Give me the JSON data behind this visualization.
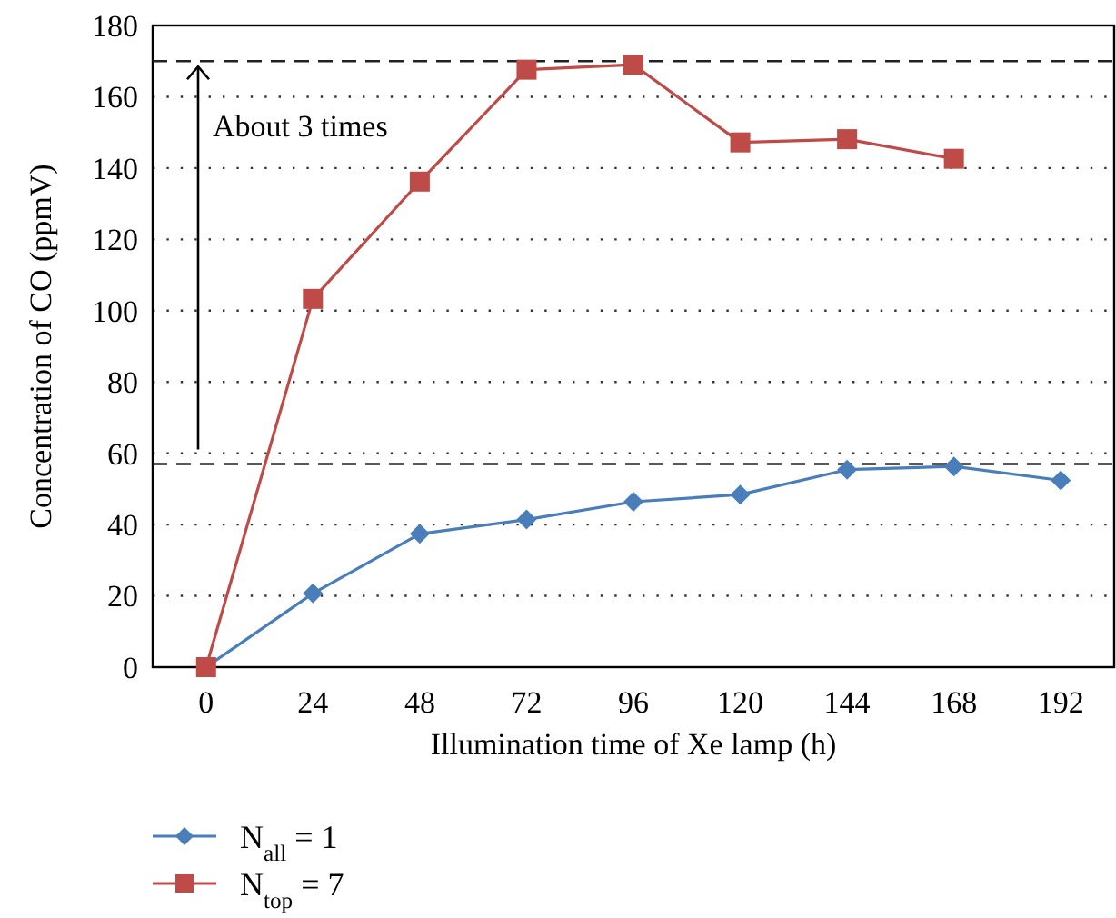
{
  "chart_data": {
    "type": "line",
    "xlabel": "Illumination time of Xe lamp (h)",
    "ylabel": "Concentration of CO (ppmV)",
    "x": [
      0,
      24,
      48,
      72,
      96,
      120,
      144,
      168,
      192
    ],
    "xlim": [
      -12,
      204
    ],
    "xticks": [
      0,
      24,
      48,
      72,
      96,
      120,
      144,
      168,
      192
    ],
    "ylim": [
      0,
      180
    ],
    "yticks": [
      0,
      20,
      40,
      60,
      80,
      100,
      120,
      140,
      160,
      180
    ],
    "grid": "y",
    "legend": "bottom left",
    "series": [
      {
        "name": "N$_{all}$ = 1",
        "color": "#4a7ebb",
        "marker": "diamond",
        "values": [
          0,
          20.7,
          37.4,
          41.4,
          46.4,
          48.4,
          55.4,
          56.3,
          52.4
        ]
      },
      {
        "name": "N$_{top}$ = 7",
        "color": "#be4b48",
        "marker": "square",
        "values": [
          0,
          103.3,
          136.2,
          167.6,
          169,
          147.2,
          148.1,
          142.6,
          null
        ]
      }
    ],
    "ref_lines": [
      {
        "axis": "y",
        "value": 170,
        "color": "#222222",
        "line_style": "dashed"
      },
      {
        "axis": "y",
        "value": 57,
        "color": "#222222",
        "line_style": "dashed"
      }
    ],
    "annotations": [
      "About 3 times"
    ]
  }
}
